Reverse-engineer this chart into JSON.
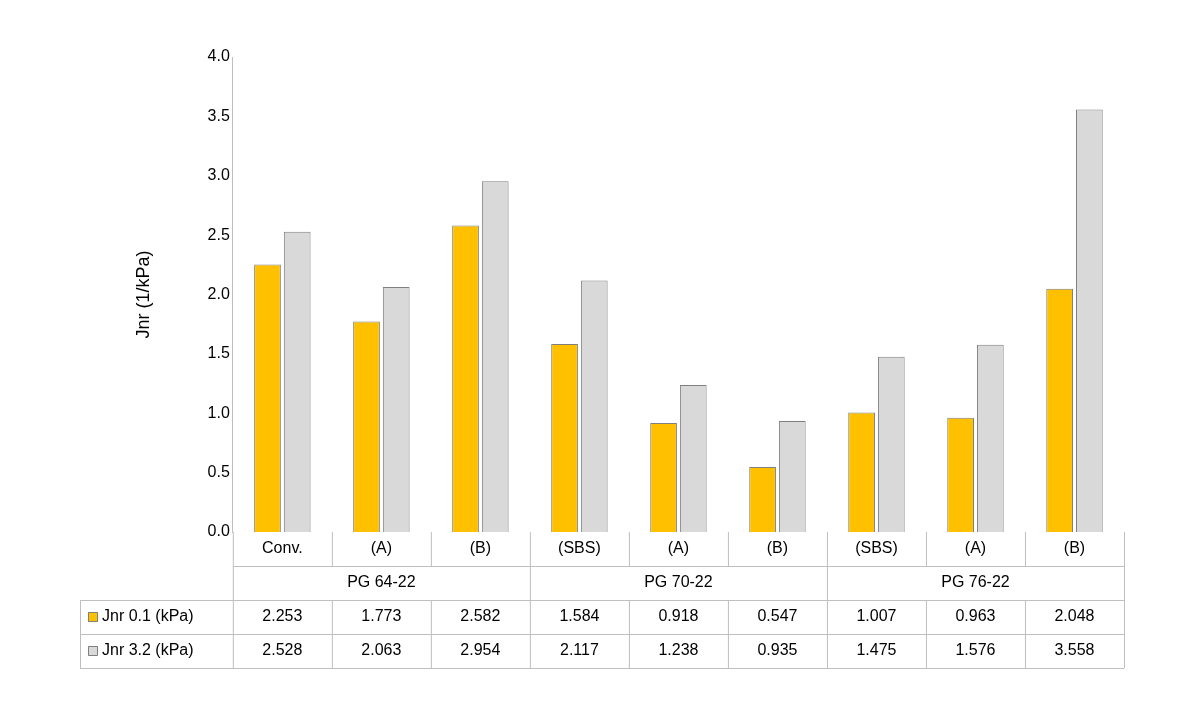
{
  "chart_data": {
    "type": "bar",
    "ylabel": "Jnr (1/kPa)",
    "categories": [
      "Conv.",
      "(A)",
      "(B)",
      "(SBS)",
      "(A)",
      "(B)",
      "(SBS)",
      "(A)",
      "(B)"
    ],
    "annotations": [
      "PG 64-22",
      "PG 70-22",
      "PG 76-22"
    ],
    "series": [
      {
        "name": "Jnr 0.1 (kPa)",
        "color": "#ffc000",
        "values": [
          2.253,
          1.773,
          2.582,
          1.584,
          0.918,
          0.547,
          1.007,
          0.963,
          2.048
        ]
      },
      {
        "name": "Jnr 3.2 (kPa)",
        "color": "#d9d9d9",
        "values": [
          2.528,
          2.063,
          2.954,
          2.117,
          1.238,
          0.935,
          1.475,
          1.576,
          3.558
        ]
      }
    ],
    "ylim": [
      0,
      4
    ],
    "yticks": [
      {
        "value": 0,
        "label": "0.0"
      },
      {
        "value": 0.5,
        "label": "0.5"
      },
      {
        "value": 1,
        "label": "1.0"
      },
      {
        "value": 1.5,
        "label": "1.5"
      },
      {
        "value": 2,
        "label": "2.0"
      },
      {
        "value": 2.5,
        "label": "2.5"
      },
      {
        "value": 3,
        "label": "3.0"
      },
      {
        "value": 3.5,
        "label": "3.5"
      },
      {
        "value": 4,
        "label": "4.0"
      }
    ],
    "grid": false,
    "legend": "bottom",
    "data_labels": true
  }
}
